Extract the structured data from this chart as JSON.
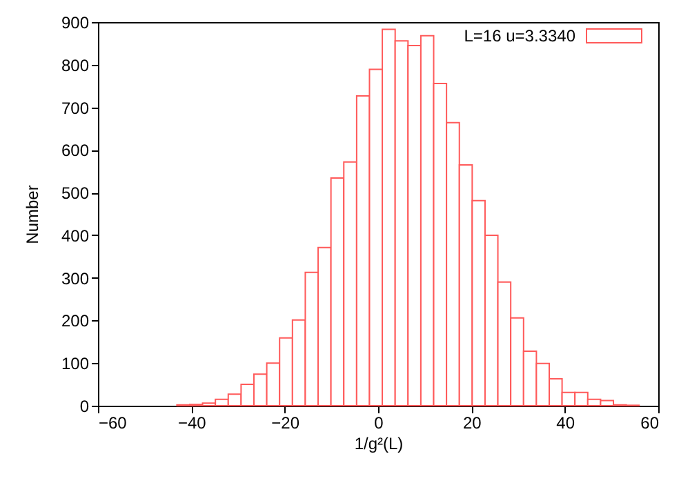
{
  "chart_data": {
    "type": "histogram",
    "xlabel": "1/g²(L)",
    "ylabel": "Number",
    "bins": [
      -43.1,
      -40.35,
      -37.6,
      -34.85,
      -32.1,
      -29.35,
      -26.6,
      -23.85,
      -21.1,
      -18.35,
      -15.6,
      -12.85,
      -10.1,
      -7.35,
      -4.6,
      -1.85,
      0.9,
      3.65,
      6.4,
      9.15,
      11.9,
      14.65,
      17.4,
      20.15,
      22.9,
      25.65,
      28.4,
      31.15,
      33.9,
      36.65,
      39.4,
      42.15,
      44.9,
      47.65,
      50.4,
      53.15,
      55.9
    ],
    "series": [
      {
        "name": "L=16 u=3.3340",
        "color": "#ff5a5a",
        "values": [
          2,
          3,
          6,
          15,
          27,
          50,
          74,
          100,
          159,
          201,
          313,
          371,
          534,
          572,
          727,
          789,
          883,
          856,
          845,
          868,
          756,
          664,
          565,
          481,
          400,
          290,
          206,
          128,
          99,
          63,
          31,
          31,
          15,
          12,
          2,
          1
        ]
      }
    ],
    "xlim": [
      -60,
      60
    ],
    "xticks": [
      -60,
      -40,
      -20,
      0,
      20,
      40,
      60
    ],
    "ylim": [
      0,
      900
    ],
    "yticks": [
      0,
      100,
      200,
      300,
      400,
      500,
      600,
      700,
      800,
      900
    ],
    "grid": false,
    "legend": "top right"
  }
}
